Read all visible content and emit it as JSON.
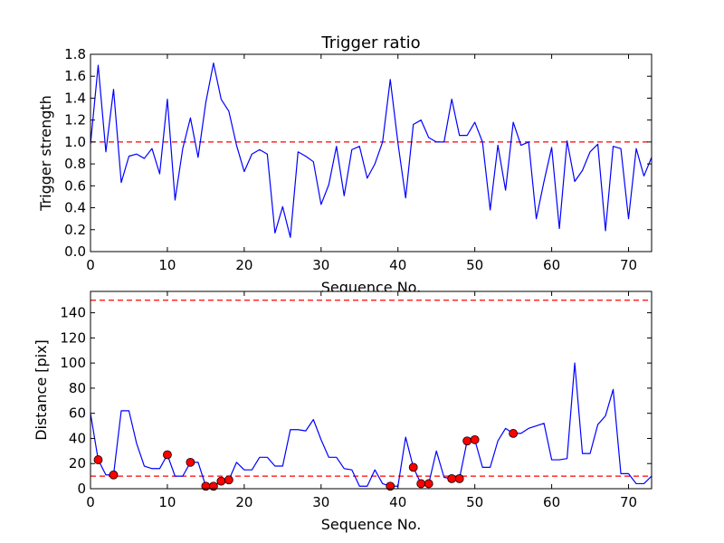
{
  "chart_data": [
    {
      "type": "line",
      "title": "Trigger ratio",
      "xlabel": "Sequence No.",
      "ylabel": "Trigger strength",
      "xlim": [
        0,
        73
      ],
      "ylim": [
        0,
        1.8
      ],
      "xticks": [
        0,
        10,
        20,
        30,
        40,
        50,
        60,
        70
      ],
      "yticks": [
        0.0,
        0.2,
        0.4,
        0.6,
        0.8,
        1.0,
        1.2,
        1.4,
        1.6,
        1.8
      ],
      "ytick_labels": [
        "0.0",
        "0.2",
        "0.4",
        "0.6",
        "0.8",
        "1.0",
        "1.2",
        "1.4",
        "1.6",
        "1.8"
      ],
      "grid": false,
      "threshold": 1.0,
      "line_color": "#0000ff",
      "threshold_color": "#ff0000",
      "series": [
        {
          "x": [
            0,
            1,
            2,
            3,
            4,
            5,
            6,
            7,
            8,
            9,
            10,
            11,
            12,
            13,
            14,
            15,
            16,
            17,
            18,
            19,
            20,
            21,
            22,
            23,
            24,
            25,
            26,
            27,
            28,
            29,
            30,
            31,
            32,
            33,
            34,
            35,
            36,
            37,
            38,
            39,
            40,
            41,
            42,
            43,
            44,
            45,
            46,
            47,
            48,
            49,
            50,
            51,
            52,
            53,
            54,
            55,
            56,
            57,
            58,
            59,
            60,
            61,
            62,
            63,
            64,
            65,
            66,
            67,
            68,
            69,
            70,
            71,
            72,
            73
          ],
          "values": [
            0.98,
            1.7,
            0.91,
            1.48,
            0.63,
            0.87,
            0.89,
            0.85,
            0.94,
            0.71,
            1.39,
            0.47,
            0.94,
            1.22,
            0.86,
            1.36,
            1.72,
            1.39,
            1.28,
            0.97,
            0.73,
            0.89,
            0.93,
            0.89,
            0.17,
            0.41,
            0.13,
            0.91,
            0.87,
            0.82,
            0.43,
            0.61,
            0.96,
            0.51,
            0.93,
            0.96,
            0.67,
            0.8,
            1.0,
            1.57,
            0.99,
            0.49,
            1.16,
            1.2,
            1.04,
            1.0,
            1.0,
            1.39,
            1.06,
            1.06,
            1.18,
            1.0,
            0.38,
            0.97,
            0.56,
            1.18,
            0.97,
            1.0,
            0.3,
            0.64,
            0.95,
            0.21,
            1.01,
            0.64,
            0.74,
            0.91,
            0.98,
            0.19,
            0.96,
            0.94,
            0.3,
            0.94,
            0.69,
            0.86
          ]
        }
      ]
    },
    {
      "type": "line",
      "title": "",
      "xlabel": "Sequence No.",
      "ylabel": "Distance [pix]",
      "xlim": [
        0,
        73
      ],
      "ylim": [
        0,
        157
      ],
      "xticks": [
        0,
        10,
        20,
        30,
        40,
        50,
        60,
        70
      ],
      "yticks": [
        0,
        20,
        40,
        60,
        80,
        100,
        120,
        140
      ],
      "ytick_labels": [
        "0",
        "20",
        "40",
        "60",
        "80",
        "100",
        "120",
        "140"
      ],
      "grid": false,
      "thresholds": [
        10,
        150
      ],
      "line_color": "#0000ff",
      "threshold_color": "#ff0000",
      "marker_color": "#ff0000",
      "series": [
        {
          "x": [
            0,
            1,
            2,
            3,
            4,
            5,
            6,
            7,
            8,
            9,
            10,
            11,
            12,
            13,
            14,
            15,
            16,
            17,
            18,
            19,
            20,
            21,
            22,
            23,
            24,
            25,
            26,
            27,
            28,
            29,
            30,
            31,
            32,
            33,
            34,
            35,
            36,
            37,
            38,
            39,
            40,
            41,
            42,
            43,
            44,
            45,
            46,
            47,
            48,
            49,
            50,
            51,
            52,
            53,
            54,
            55,
            56,
            57,
            58,
            59,
            60,
            61,
            62,
            63,
            64,
            65,
            66,
            67,
            68,
            69,
            70,
            71,
            72,
            73
          ],
          "values": [
            60,
            23,
            11,
            11,
            62,
            62,
            36,
            18,
            16,
            16,
            27,
            10,
            10,
            21,
            21,
            2,
            2,
            6,
            7,
            21,
            15,
            15,
            25,
            25,
            18,
            18,
            47,
            47,
            46,
            55,
            39,
            25,
            25,
            16,
            15,
            2,
            2,
            15,
            4,
            2,
            2,
            41,
            17,
            4,
            4,
            30,
            9,
            8,
            8,
            38,
            39,
            17,
            17,
            38,
            48,
            44,
            44,
            48,
            50,
            52,
            23,
            23,
            24,
            100,
            28,
            28,
            51,
            58,
            79,
            12,
            12,
            4,
            4,
            10
          ]
        },
        {
          "name": "",
          "style": "markers",
          "x": [
            1,
            3,
            10,
            13,
            15,
            16,
            17,
            18,
            39,
            42,
            43,
            44,
            47,
            48,
            49,
            50,
            55
          ],
          "values": [
            23,
            11,
            27,
            21,
            2,
            2,
            6,
            7,
            2,
            17,
            4,
            4,
            8,
            8,
            38,
            39,
            44
          ]
        }
      ]
    }
  ]
}
